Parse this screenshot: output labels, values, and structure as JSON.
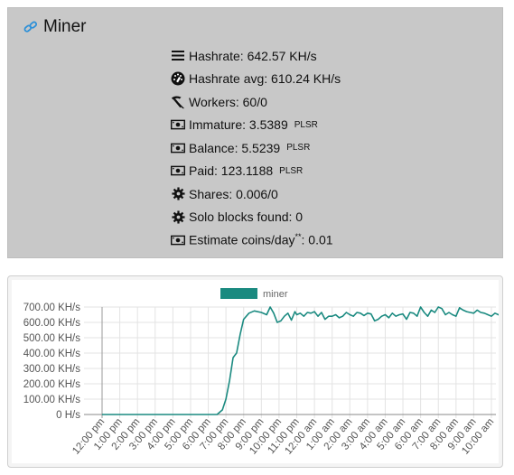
{
  "miner": {
    "title": "Miner",
    "stats": [
      {
        "icon": "list-icon",
        "label": "Hashrate: 642.57 KH/s",
        "unit": ""
      },
      {
        "icon": "gauge-icon",
        "label": "Hashrate avg: 610.24 KH/s",
        "unit": ""
      },
      {
        "icon": "pickaxe-icon",
        "label": "Workers: 60/0",
        "unit": ""
      },
      {
        "icon": "money-icon",
        "label": "Immature: 3.5389",
        "unit": "PLSR"
      },
      {
        "icon": "money-icon",
        "label": "Balance: 5.5239",
        "unit": "PLSR"
      },
      {
        "icon": "money-icon",
        "label": "Paid: 123.1188",
        "unit": "PLSR"
      },
      {
        "icon": "gear-icon",
        "label": "Shares: 0.006/0",
        "unit": ""
      },
      {
        "icon": "gear-icon",
        "label": "Solo blocks found: 0",
        "unit": ""
      },
      {
        "icon": "money-icon",
        "label": "Estimate coins/day",
        "sup": "**",
        "suffix": ": 0.01",
        "unit": ""
      }
    ]
  },
  "colors": {
    "series": "#1a8a80",
    "panel": "#c8c8c8"
  },
  "chart_data": {
    "type": "line",
    "legend": {
      "label": "miner",
      "placement": "top-center"
    },
    "y_ticks": [
      "0 H/s",
      "100.00 KH/s",
      "200.00 KH/s",
      "300.00 KH/s",
      "400.00 KH/s",
      "500.00 KH/s",
      "600.00 KH/s",
      "700.00 KH/s"
    ],
    "ylim": [
      0,
      700
    ],
    "x_ticks": [
      "12:00 pm",
      "1:00 pm",
      "2:00 pm",
      "3:00 pm",
      "4:00 pm",
      "5:00 pm",
      "6:00 pm",
      "7:00 pm",
      "8:00 pm",
      "9:00 pm",
      "10:00 pm",
      "11:00 pm",
      "12:00 am",
      "1:00 am",
      "2:00 am",
      "3:00 am",
      "4:00 am",
      "5:00 am",
      "6:00 am",
      "7:00 am",
      "8:00 am",
      "9:00 am",
      "10:00 am"
    ],
    "grid": true,
    "series": [
      {
        "name": "miner",
        "x": [
          0,
          1,
          2,
          3,
          4,
          5,
          6,
          6.2,
          6.5,
          6.8,
          7.0,
          7.2,
          7.4,
          7.5,
          7.6,
          7.8,
          8.0,
          8.3,
          8.6,
          9.0,
          9.3,
          9.5,
          9.7,
          9.9,
          10.1,
          10.3,
          10.5,
          10.7,
          10.9,
          11.0,
          11.2,
          11.4,
          11.6,
          11.8,
          12.0,
          12.2,
          12.4,
          12.6,
          12.8,
          13.0,
          13.2,
          13.4,
          13.6,
          13.8,
          14.0,
          14.2,
          14.4,
          14.6,
          14.8,
          15.0,
          15.2,
          15.4,
          15.6,
          15.8,
          16.0,
          16.2,
          16.4,
          16.6,
          16.8,
          17.0,
          17.2,
          17.4,
          17.6,
          17.8,
          18.0,
          18.2,
          18.4,
          18.6,
          18.8,
          19.0,
          19.2,
          19.4,
          19.6,
          19.8,
          20.0,
          20.2,
          20.4,
          20.6,
          20.8,
          21.0,
          21.2,
          21.4,
          21.6,
          21.8,
          22.0,
          22.2,
          22.4,
          22.6
        ],
        "values": [
          0,
          0,
          0,
          0,
          0,
          0,
          0,
          0,
          0,
          30,
          100,
          220,
          370,
          385,
          400,
          520,
          620,
          660,
          675,
          665,
          650,
          700,
          660,
          600,
          610,
          640,
          660,
          615,
          670,
          650,
          660,
          640,
          665,
          660,
          670,
          640,
          665,
          620,
          640,
          640,
          650,
          630,
          640,
          665,
          650,
          640,
          665,
          660,
          645,
          660,
          655,
          610,
          620,
          640,
          650,
          630,
          660,
          640,
          650,
          655,
          620,
          665,
          660,
          640,
          700,
          665,
          640,
          680,
          665,
          700,
          690,
          650,
          665,
          650,
          640,
          695,
          680,
          670,
          665,
          660,
          680,
          665,
          660,
          650,
          640,
          660,
          650,
          640
        ]
      }
    ]
  }
}
